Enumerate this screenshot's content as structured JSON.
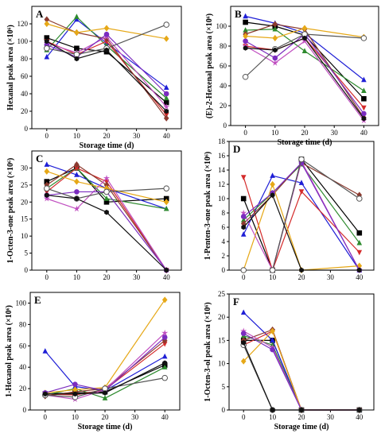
{
  "figure": {
    "background": "#ffffff"
  },
  "chart_data": [
    {
      "type": "line",
      "panel": "A",
      "x": [
        0,
        10,
        20,
        40
      ],
      "xlim": [
        -5,
        45
      ],
      "xticks": [
        0,
        10,
        20,
        30,
        40
      ],
      "xlabel": "Storage time (d)",
      "ylabel": "Hexanal peak area (×10⁶)",
      "ylim": [
        0,
        140
      ],
      "yticks": [
        0,
        20,
        40,
        60,
        80,
        100,
        120
      ],
      "grid": false,
      "series": [
        {
          "color": "#000000",
          "marker": "square",
          "values": [
            104,
            92,
            88,
            30
          ]
        },
        {
          "color": "#1f1fd6",
          "marker": "triangle-up",
          "values": [
            82,
            125,
            98,
            47
          ]
        },
        {
          "color": "#2e8b2e",
          "marker": "triangle-up",
          "values": [
            90,
            128,
            95,
            35
          ]
        },
        {
          "color": "#d42a2a",
          "marker": "triangle-down",
          "values": [
            100,
            85,
            100,
            16
          ]
        },
        {
          "color": "#8b3a2f",
          "marker": "diamond",
          "values": [
            125,
            110,
            103,
            12
          ]
        },
        {
          "color": "#e6a817",
          "marker": "diamond",
          "values": [
            120,
            110,
            115,
            103
          ]
        },
        {
          "color": "#c04ec0",
          "marker": "star",
          "values": [
            98,
            87,
            105,
            25
          ]
        },
        {
          "color": "#7b2cbf",
          "marker": "circle",
          "values": [
            96,
            82,
            108,
            40
          ]
        },
        {
          "color": "#555555",
          "marker": "circle-open",
          "values": [
            92,
            85,
            92,
            119
          ]
        },
        {
          "color": "#111111",
          "marker": "hexagon",
          "values": [
            100,
            80,
            90,
            20
          ]
        }
      ]
    },
    {
      "type": "line",
      "panel": "B",
      "x": [
        0,
        10,
        20,
        40
      ],
      "xlim": [
        -5,
        45
      ],
      "xticks": [
        0,
        10,
        20,
        30,
        40
      ],
      "xlabel": "Storage time (d)",
      "ylabel": "(E)-2-Hexenal peak area (×10⁶)",
      "ylim": [
        0,
        120
      ],
      "yticks": [
        0,
        20,
        40,
        60,
        80,
        100
      ],
      "grid": false,
      "series": [
        {
          "color": "#000000",
          "marker": "square",
          "values": [
            104,
            100,
            91,
            27
          ]
        },
        {
          "color": "#1f1fd6",
          "marker": "triangle-up",
          "values": [
            110,
            103,
            93,
            46
          ]
        },
        {
          "color": "#2e8b2e",
          "marker": "triangle-up",
          "values": [
            96,
            97,
            75,
            35
          ]
        },
        {
          "color": "#d42a2a",
          "marker": "triangle-down",
          "values": [
            80,
            76,
            88,
            18
          ]
        },
        {
          "color": "#8b3a2f",
          "marker": "diamond",
          "values": [
            92,
            102,
            97,
            8
          ]
        },
        {
          "color": "#e6a817",
          "marker": "diamond",
          "values": [
            90,
            88,
            98,
            89
          ]
        },
        {
          "color": "#c04ec0",
          "marker": "star",
          "values": [
            80,
            63,
            85,
            5
          ]
        },
        {
          "color": "#7b2cbf",
          "marker": "circle",
          "values": [
            85,
            68,
            92,
            12
          ]
        },
        {
          "color": "#555555",
          "marker": "circle-open",
          "values": [
            49,
            77,
            92,
            88
          ]
        },
        {
          "color": "#111111",
          "marker": "hexagon",
          "values": [
            78,
            76,
            88,
            7
          ]
        }
      ]
    },
    {
      "type": "line",
      "panel": "C",
      "x": [
        0,
        10,
        20,
        40
      ],
      "xlim": [
        -5,
        45
      ],
      "xticks": [
        0,
        10,
        20,
        30,
        40
      ],
      "xlabel": "",
      "ylabel": "1-Octen-3-one peak area (×10⁶)",
      "ylim": [
        0,
        35
      ],
      "yticks": [
        0,
        5,
        10,
        15,
        20,
        25,
        30
      ],
      "grid": false,
      "series": [
        {
          "color": "#000000",
          "marker": "square",
          "values": [
            26,
            30,
            20,
            21
          ]
        },
        {
          "color": "#1f1fd6",
          "marker": "triangle-up",
          "values": [
            31,
            28,
            24,
            18
          ]
        },
        {
          "color": "#2e8b2e",
          "marker": "triangle-up",
          "values": [
            24,
            30,
            21,
            18
          ]
        },
        {
          "color": "#d42a2a",
          "marker": "triangle-down",
          "values": [
            23,
            30,
            26,
            0
          ]
        },
        {
          "color": "#8b3a2f",
          "marker": "diamond",
          "values": [
            25,
            31,
            25,
            0
          ]
        },
        {
          "color": "#e6a817",
          "marker": "diamond",
          "values": [
            29,
            26,
            24,
            20
          ]
        },
        {
          "color": "#c04ec0",
          "marker": "star",
          "values": [
            21,
            18,
            27,
            0
          ]
        },
        {
          "color": "#7b2cbf",
          "marker": "circle",
          "values": [
            22,
            23,
            23,
            0
          ]
        },
        {
          "color": "#555555",
          "marker": "circle-open",
          "values": [
            24,
            21,
            23,
            24
          ]
        },
        {
          "color": "#111111",
          "marker": "hexagon",
          "values": [
            22,
            21,
            17,
            0
          ]
        }
      ]
    },
    {
      "type": "line",
      "panel": "D",
      "x": [
        0,
        10,
        20,
        40
      ],
      "xlim": [
        -5,
        45
      ],
      "xticks": [
        0,
        10,
        20,
        30,
        40
      ],
      "xlabel": "",
      "ylabel": "1-Penten-3-one peak area (×10⁶)",
      "ylim": [
        0,
        18
      ],
      "yticks": [
        0,
        2,
        4,
        6,
        8,
        10,
        12,
        14,
        16,
        18
      ],
      "grid": false,
      "series": [
        {
          "color": "#000000",
          "marker": "square",
          "values": [
            10,
            0,
            15.5,
            5.2
          ]
        },
        {
          "color": "#1f1fd6",
          "marker": "triangle-up",
          "values": [
            5,
            13.2,
            12.2,
            0
          ]
        },
        {
          "color": "#2e8b2e",
          "marker": "triangle-up",
          "values": [
            7,
            10.8,
            14.8,
            3.8
          ]
        },
        {
          "color": "#d42a2a",
          "marker": "triangle-down",
          "values": [
            13,
            0,
            11,
            2.5
          ]
        },
        {
          "color": "#8b3a2f",
          "marker": "diamond",
          "values": [
            6.5,
            10.5,
            15,
            10.5
          ]
        },
        {
          "color": "#e6a817",
          "marker": "diamond",
          "values": [
            0,
            12,
            0,
            0.6
          ]
        },
        {
          "color": "#c04ec0",
          "marker": "star",
          "values": [
            8,
            0,
            15.2,
            0
          ]
        },
        {
          "color": "#7b2cbf",
          "marker": "circle",
          "values": [
            7.5,
            10.8,
            15,
            0
          ]
        },
        {
          "color": "#555555",
          "marker": "circle-open",
          "values": [
            0,
            0,
            15.5,
            10
          ]
        },
        {
          "color": "#111111",
          "marker": "hexagon",
          "values": [
            6,
            10.5,
            0,
            0
          ]
        }
      ]
    },
    {
      "type": "line",
      "panel": "E",
      "x": [
        0,
        10,
        20,
        40
      ],
      "xlim": [
        -5,
        45
      ],
      "xticks": [
        0,
        10,
        20,
        30,
        40
      ],
      "xlabel": "Storage time (d)",
      "ylabel": "1-Hexanol peak area (×10⁶)",
      "ylim": [
        0,
        110
      ],
      "yticks": [
        0,
        20,
        40,
        60,
        80,
        100
      ],
      "grid": false,
      "series": [
        {
          "color": "#000000",
          "marker": "square",
          "values": [
            15,
            16,
            17,
            42
          ]
        },
        {
          "color": "#1f1fd6",
          "marker": "triangle-up",
          "values": [
            55,
            22,
            18,
            50
          ]
        },
        {
          "color": "#2e8b2e",
          "marker": "triangle-up",
          "values": [
            14,
            20,
            11,
            40
          ]
        },
        {
          "color": "#d42a2a",
          "marker": "triangle-down",
          "values": [
            15,
            14,
            19,
            62
          ]
        },
        {
          "color": "#8b3a2f",
          "marker": "diamond",
          "values": [
            13,
            17,
            20,
            65
          ]
        },
        {
          "color": "#e6a817",
          "marker": "diamond",
          "values": [
            16,
            19,
            21,
            103
          ]
        },
        {
          "color": "#c04ec0",
          "marker": "star",
          "values": [
            14,
            10,
            19,
            72
          ]
        },
        {
          "color": "#7b2cbf",
          "marker": "circle",
          "values": [
            16,
            24,
            18,
            68
          ]
        },
        {
          "color": "#555555",
          "marker": "circle-open",
          "values": [
            14,
            12,
            20,
            30
          ]
        },
        {
          "color": "#111111",
          "marker": "hexagon",
          "values": [
            15,
            15,
            16,
            44
          ]
        }
      ]
    },
    {
      "type": "line",
      "panel": "F",
      "x": [
        0,
        10,
        20,
        40
      ],
      "xlim": [
        -5,
        45
      ],
      "xticks": [
        0,
        10,
        20,
        30,
        40
      ],
      "xlabel": "Storage time (d)",
      "ylabel": "1-Octen-3-ol peak area (×10⁶)",
      "ylim": [
        0,
        25
      ],
      "yticks": [
        0,
        5,
        10,
        15,
        20,
        25
      ],
      "grid": false,
      "series": [
        {
          "color": "#000000",
          "marker": "square",
          "values": [
            15,
            15,
            0,
            0
          ]
        },
        {
          "color": "#1f1fd6",
          "marker": "triangle-up",
          "values": [
            21,
            15,
            0,
            0
          ]
        },
        {
          "color": "#2e8b2e",
          "marker": "triangle-up",
          "values": [
            16,
            14,
            0,
            0
          ]
        },
        {
          "color": "#d42a2a",
          "marker": "triangle-down",
          "values": [
            14,
            17,
            0,
            0
          ]
        },
        {
          "color": "#8b3a2f",
          "marker": "diamond",
          "values": [
            15,
            17.3,
            0,
            0
          ]
        },
        {
          "color": "#e6a817",
          "marker": "diamond",
          "values": [
            10.5,
            17,
            0,
            0
          ]
        },
        {
          "color": "#c04ec0",
          "marker": "star",
          "values": [
            17,
            13.5,
            0,
            0
          ]
        },
        {
          "color": "#7b2cbf",
          "marker": "circle",
          "values": [
            16.5,
            13,
            0,
            0
          ]
        },
        {
          "color": "#555555",
          "marker": "circle-open",
          "values": [
            14,
            0,
            0,
            0
          ]
        },
        {
          "color": "#111111",
          "marker": "hexagon",
          "values": [
            14.5,
            0,
            0,
            0
          ]
        }
      ]
    }
  ]
}
